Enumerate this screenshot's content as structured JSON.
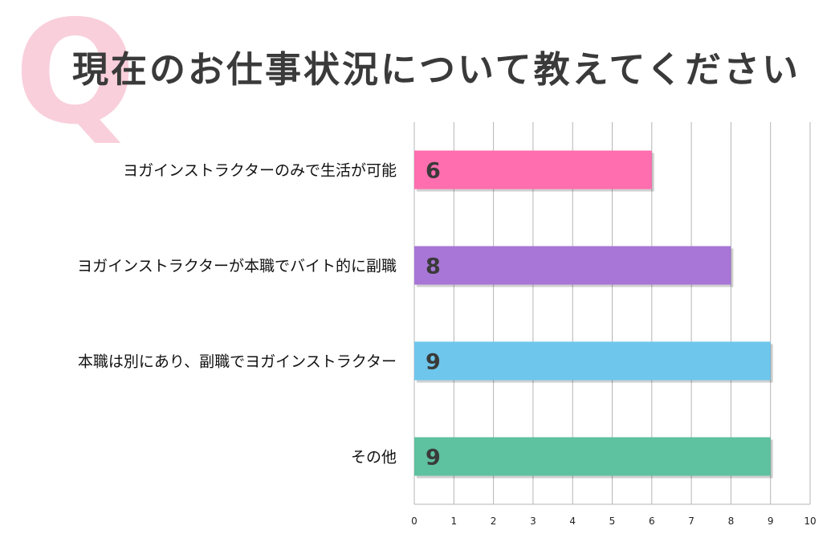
{
  "header": {
    "q_mark": "Q",
    "title": "現在のお仕事状況について教えてください"
  },
  "chart_data": {
    "type": "bar",
    "orientation": "horizontal",
    "categories": [
      "ヨガインストラクターのみで生活が可能",
      "ヨガインストラクターが本職でバイト的に副職",
      "本職は別にあり、副職でヨガインストラクター",
      "その他"
    ],
    "values": [
      6,
      8,
      9,
      9
    ],
    "colors": [
      "#ff6eae",
      "#a776d6",
      "#6ec6ec",
      "#5ec19f"
    ],
    "xlim": [
      0,
      10
    ],
    "ticks": [
      "0",
      "1",
      "2",
      "3",
      "4",
      "5",
      "6",
      "7",
      "8",
      "9",
      "10"
    ],
    "grid": true,
    "value_labels": true,
    "title": "",
    "xlabel": "",
    "ylabel": ""
  }
}
